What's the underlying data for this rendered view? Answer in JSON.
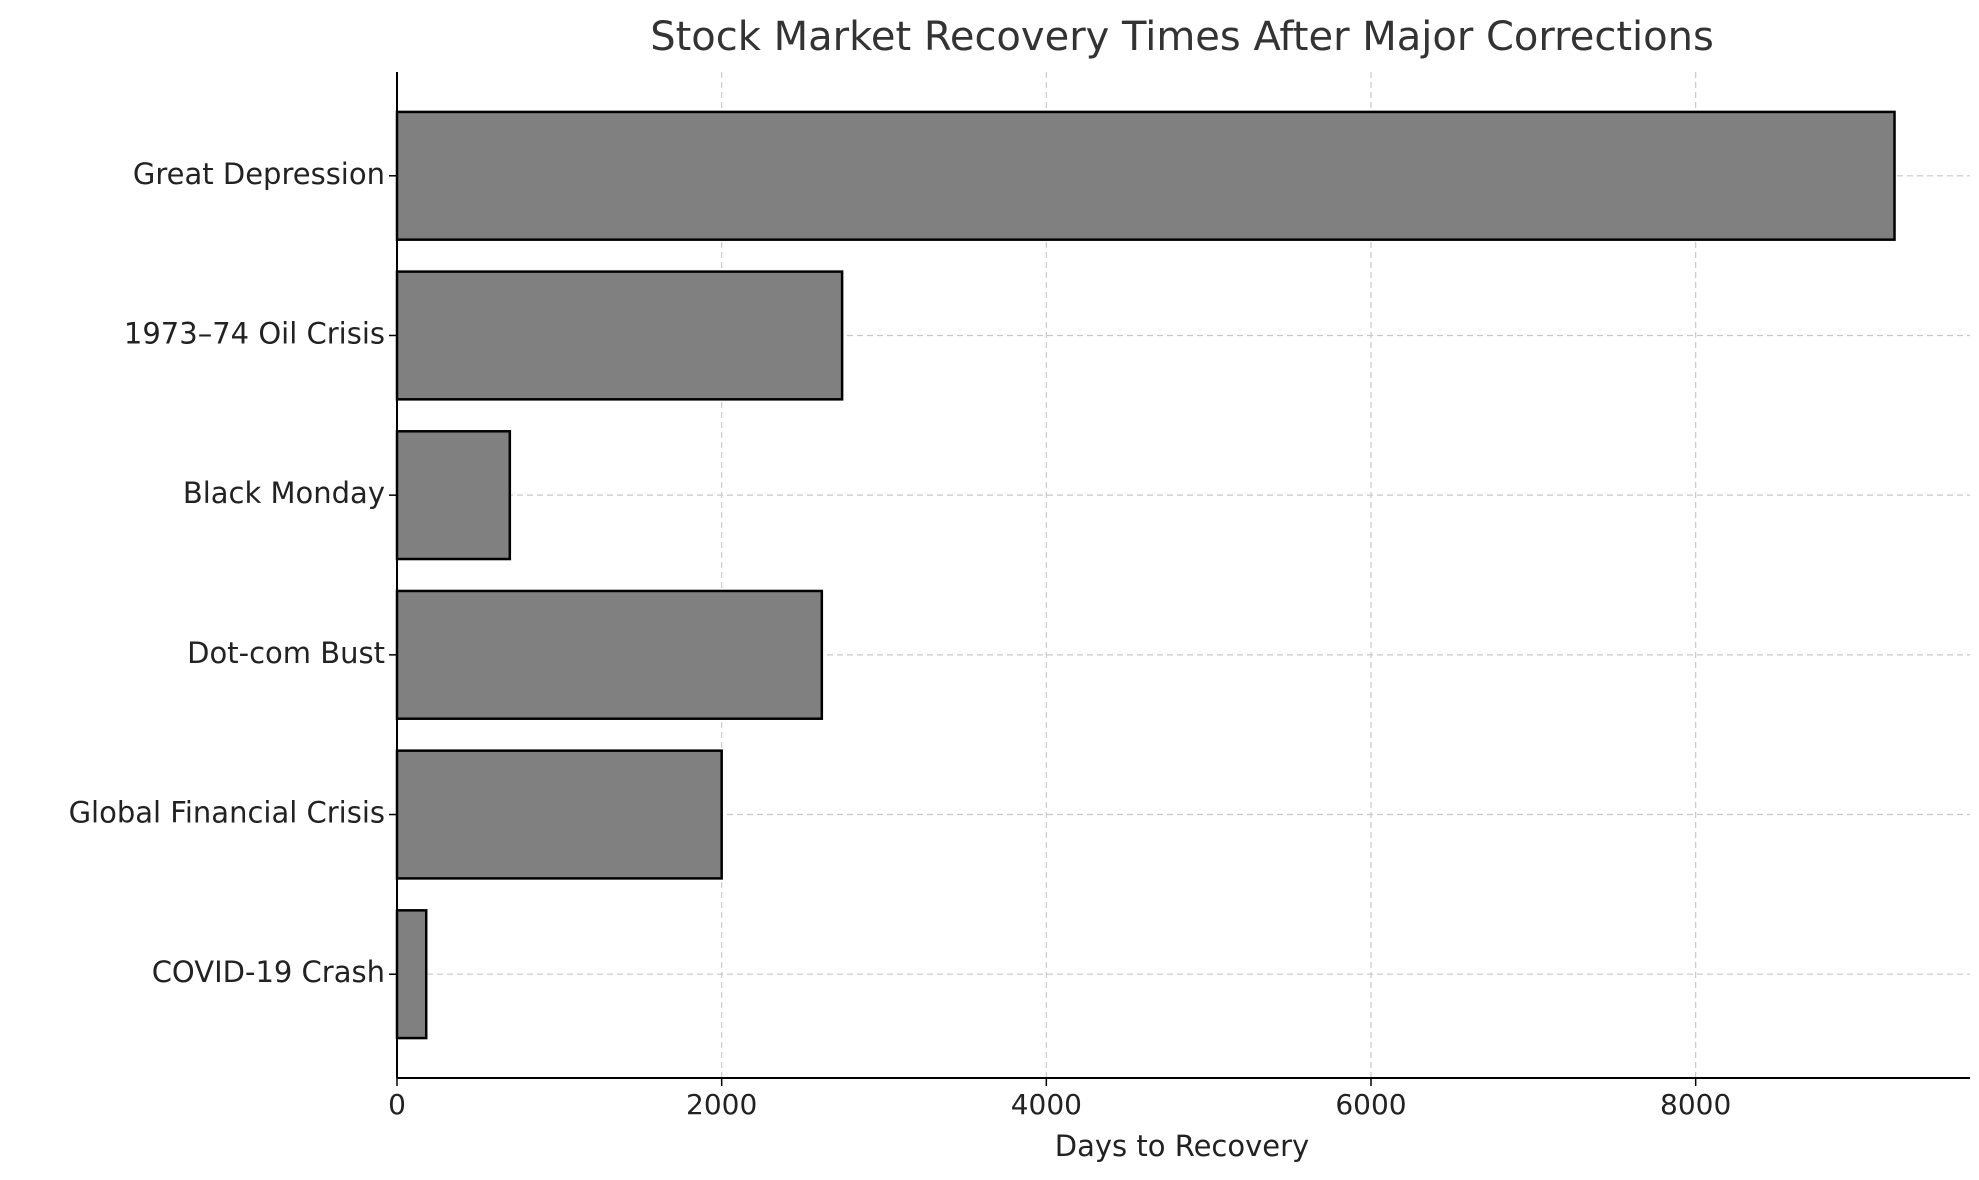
{
  "chart_data": {
    "type": "barh",
    "title": "Stock Market Recovery Times After Major Corrections",
    "xlabel": "Days to Recovery",
    "categories": [
      "Great Depression",
      "1973–74 Oil Crisis",
      "Black Monday",
      "Dot-com Bust",
      "Global Financial Crisis",
      "COVID-19 Crash"
    ],
    "values": [
      9225,
      2742,
      695,
      2617,
      2000,
      180
    ],
    "color": "#808080",
    "xlim": [
      0,
      9690
    ],
    "xticks": [
      0,
      2000,
      4000,
      6000,
      8000
    ],
    "grid": true
  }
}
